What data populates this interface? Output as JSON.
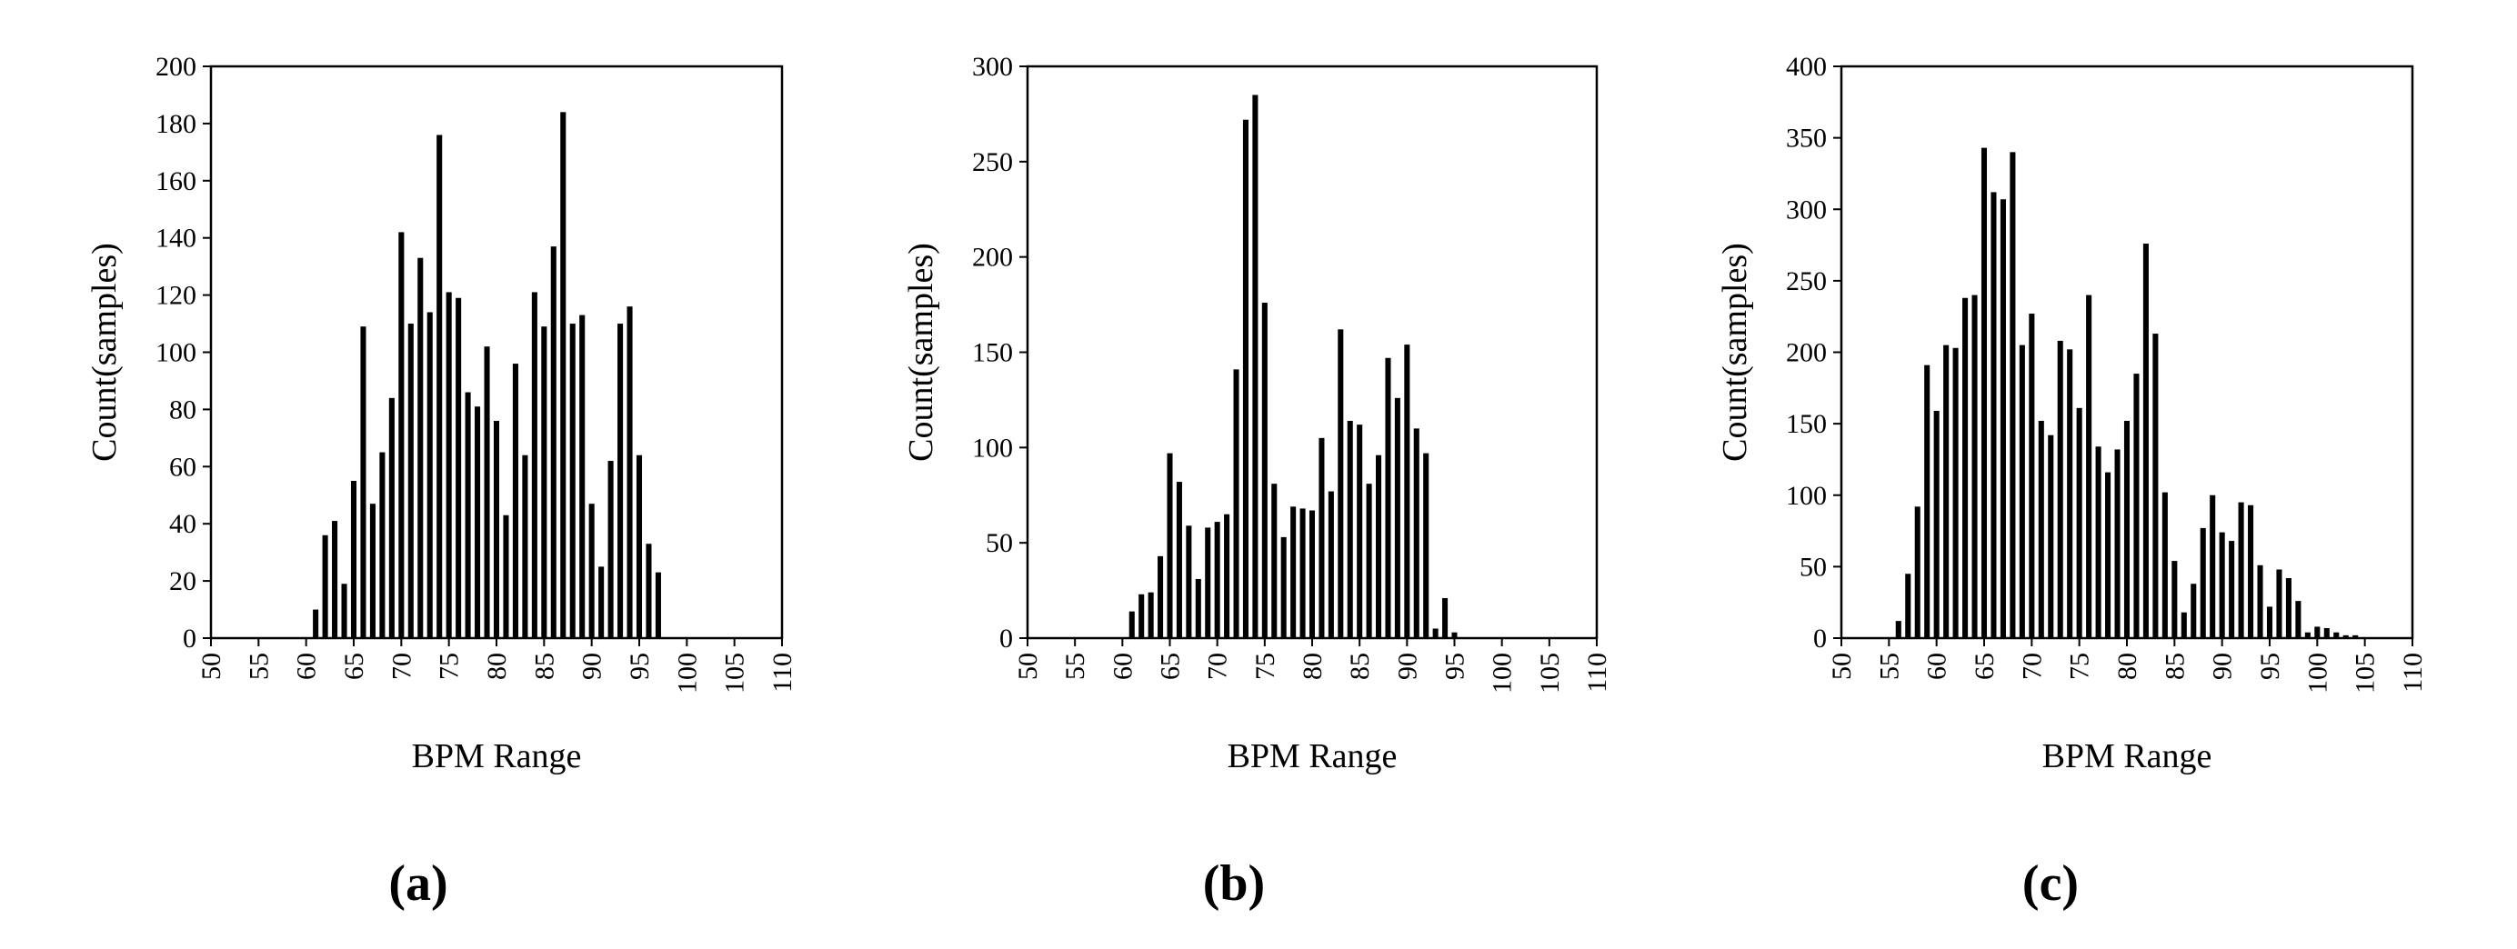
{
  "chart_data": [
    {
      "panel": "(a)",
      "type": "bar",
      "xlabel": "BPM Range",
      "ylabel": "Count(samples)",
      "ylim": [
        0,
        200
      ],
      "yticks": [
        0,
        20,
        40,
        60,
        80,
        100,
        120,
        140,
        160,
        180,
        200
      ],
      "xlim": [
        50,
        110
      ],
      "xticks": [
        50,
        55,
        60,
        65,
        70,
        75,
        80,
        85,
        90,
        95,
        100,
        105,
        110
      ],
      "grid": false,
      "legend": "none",
      "x": [
        61,
        62,
        63,
        64,
        65,
        66,
        67,
        68,
        69,
        70,
        71,
        72,
        73,
        74,
        75,
        76,
        77,
        78,
        79,
        80,
        81,
        82,
        83,
        84,
        85,
        86,
        87,
        88,
        89,
        90,
        91,
        92,
        93,
        94,
        95,
        96,
        97
      ],
      "values": [
        10,
        36,
        41,
        19,
        55,
        109,
        47,
        65,
        84,
        142,
        110,
        133,
        114,
        176,
        121,
        119,
        86,
        81,
        102,
        76,
        43,
        96,
        64,
        121,
        109,
        137,
        184,
        110,
        113,
        47,
        25,
        62,
        110,
        116,
        64,
        33,
        23
      ]
    },
    {
      "panel": "(b)",
      "type": "bar",
      "xlabel": "BPM Range",
      "ylabel": "Count(samples)",
      "ylim": [
        0,
        300
      ],
      "yticks": [
        0,
        50,
        100,
        150,
        200,
        250,
        300
      ],
      "xlim": [
        50,
        110
      ],
      "xticks": [
        50,
        55,
        60,
        65,
        70,
        75,
        80,
        85,
        90,
        95,
        100,
        105,
        110
      ],
      "grid": false,
      "legend": "none",
      "x": [
        61,
        62,
        63,
        64,
        65,
        66,
        67,
        68,
        69,
        70,
        71,
        72,
        73,
        74,
        75,
        76,
        77,
        78,
        79,
        80,
        81,
        82,
        83,
        84,
        85,
        86,
        87,
        88,
        89,
        90,
        91,
        92,
        93,
        94,
        95
      ],
      "values": [
        14,
        23,
        24,
        43,
        97,
        82,
        59,
        31,
        58,
        61,
        65,
        141,
        272,
        285,
        176,
        81,
        53,
        69,
        68,
        67,
        105,
        77,
        162,
        114,
        112,
        81,
        96,
        147,
        126,
        154,
        110,
        97,
        5,
        21,
        3
      ]
    },
    {
      "panel": "(c)",
      "type": "bar",
      "xlabel": "BPM Range",
      "ylabel": "Count(samples)",
      "ylim": [
        0,
        400
      ],
      "yticks": [
        0,
        50,
        100,
        150,
        200,
        250,
        300,
        350,
        400
      ],
      "xlim": [
        50,
        110
      ],
      "xticks": [
        50,
        55,
        60,
        65,
        70,
        75,
        80,
        85,
        90,
        95,
        100,
        105,
        110
      ],
      "grid": false,
      "legend": "none",
      "x": [
        56,
        57,
        58,
        59,
        60,
        61,
        62,
        63,
        64,
        65,
        66,
        67,
        68,
        69,
        70,
        71,
        72,
        73,
        74,
        75,
        76,
        77,
        78,
        79,
        80,
        81,
        82,
        83,
        84,
        85,
        86,
        87,
        88,
        89,
        90,
        91,
        92,
        93,
        94,
        95,
        96,
        97,
        98,
        99,
        100,
        101,
        102,
        103,
        104
      ],
      "values": [
        12,
        45,
        92,
        191,
        159,
        205,
        203,
        238,
        240,
        343,
        312,
        307,
        340,
        205,
        227,
        152,
        142,
        208,
        202,
        161,
        240,
        134,
        116,
        132,
        152,
        185,
        276,
        213,
        102,
        54,
        18,
        38,
        77,
        100,
        74,
        68,
        95,
        93,
        51,
        22,
        48,
        42,
        26,
        4,
        8,
        7,
        4,
        2,
        2
      ]
    }
  ]
}
